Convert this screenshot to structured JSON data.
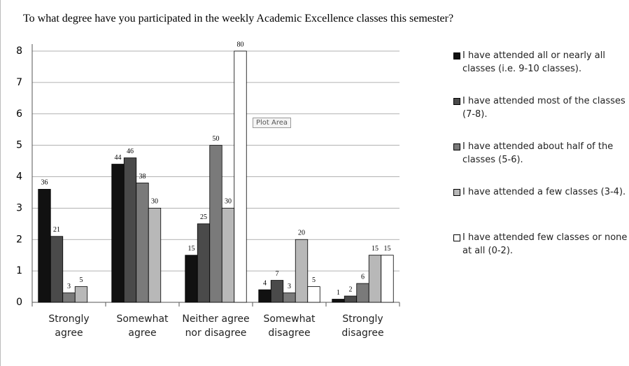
{
  "chart_data": {
    "type": "bar",
    "title": "To what degree have you participated in the weekly Academic Excellence classes this semester?",
    "categories": [
      "Strongly agree",
      "Somewhat agree",
      "Neither agree nor disagree",
      "Somewhat disagree",
      "Strongly disagree"
    ],
    "series": [
      {
        "name": "I have attended all or nearly all classes (i.e. 9-10 classes).",
        "color": "#111111",
        "values": [
          3.6,
          4.4,
          1.5,
          0.4,
          0.1
        ],
        "value_labels": [
          "36",
          "44",
          "15",
          "4",
          "1"
        ]
      },
      {
        "name": "I have attended most of the classes (7-8).",
        "color": "#4a4a4a",
        "values": [
          2.1,
          4.6,
          2.5,
          0.7,
          0.2
        ],
        "value_labels": [
          "21",
          "46",
          "25",
          "7",
          "2"
        ]
      },
      {
        "name": "I have attended about half of the classes (5-6).",
        "color": "#7a7a7a",
        "values": [
          0.3,
          3.8,
          5,
          0.3,
          0.6
        ],
        "value_labels": [
          "3",
          "38",
          "50",
          "3",
          "6"
        ]
      },
      {
        "name": "I have attended a few classes (3-4).",
        "color": "#b8b8b8",
        "values": [
          0.5,
          3,
          3,
          2,
          1.5
        ],
        "value_labels": [
          "5",
          "30",
          "30",
          "20",
          "15"
        ]
      },
      {
        "name": "I have attended few classes or none at all (0-2).",
        "color": "#ffffff",
        "values": [
          null,
          null,
          8,
          0.5,
          1.5
        ],
        "value_labels": [
          null,
          null,
          "80",
          "5",
          "15"
        ]
      }
    ],
    "ylim": [
      0,
      8
    ],
    "yticks": [
      0,
      1,
      2,
      3,
      4,
      5,
      6,
      7,
      8
    ],
    "grid": true,
    "annotation": "Plot Area",
    "legend": "right"
  }
}
